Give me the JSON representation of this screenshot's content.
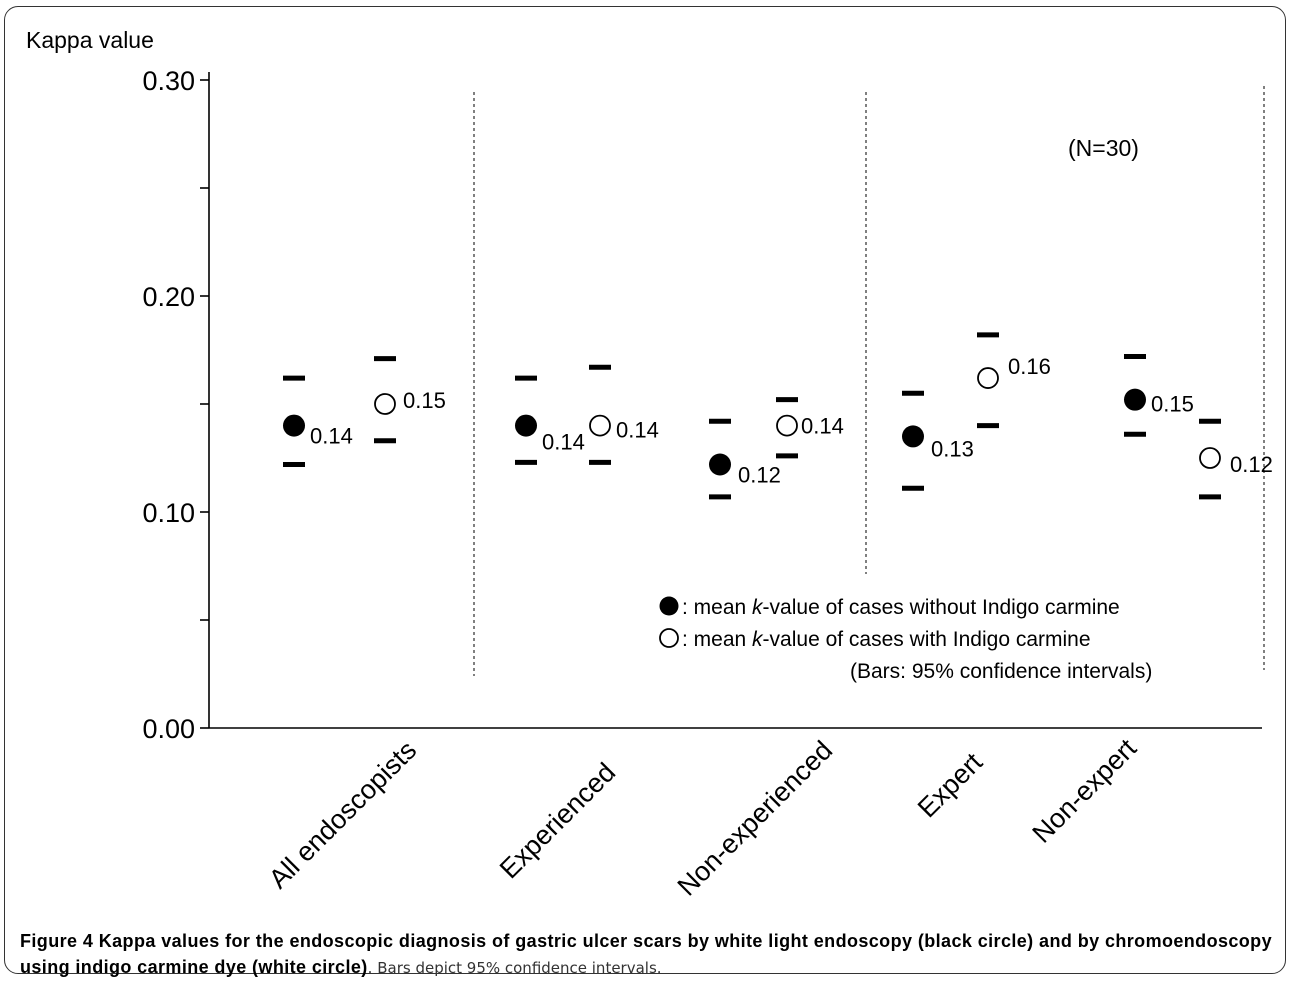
{
  "chart_data": {
    "type": "scatter",
    "ylabel": "Kappa value",
    "ylim": [
      0.0,
      0.3
    ],
    "yticks": [
      "0.00",
      "0.10",
      "0.20",
      "0.30"
    ],
    "categories": [
      "All endoscopists",
      "Experienced",
      "Non-experienced",
      "Expert",
      "Non-expert"
    ],
    "series": [
      {
        "legend_text": ": mean ",
        "legend_italic": "k",
        "legend_text_end": "-value of cases without Indigo carmine",
        "marker": "filled",
        "values": [
          0.14,
          0.14,
          0.122,
          0.135,
          0.152
        ],
        "labels": [
          "0.14",
          "0.14",
          "0.12",
          "0.13",
          "0.15"
        ],
        "ci_low": [
          0.122,
          0.123,
          0.107,
          0.111,
          0.136
        ],
        "ci_high": [
          0.162,
          0.162,
          0.142,
          0.155,
          0.172
        ]
      },
      {
        "legend_text": ": mean ",
        "legend_italic": "k",
        "legend_text_end": "-value of cases with Indigo carmine",
        "marker": "open",
        "values": [
          0.15,
          0.14,
          0.14,
          0.162,
          0.125
        ],
        "labels": [
          "0.15",
          "0.14",
          "0.14",
          "0.16",
          "0.12"
        ],
        "ci_low": [
          0.133,
          0.123,
          0.126,
          0.14,
          0.107
        ],
        "ci_high": [
          0.171,
          0.167,
          0.152,
          0.182,
          0.142
        ]
      }
    ],
    "annotation": "(N=30)",
    "legend_note": "(Bars: 95% confidence intervals)",
    "legend_position": "bottom-right",
    "grid": false
  },
  "caption": {
    "bold": "Figure 4 Kappa values for the endoscopic diagnosis of gastric ulcer scars by white light endoscopy (black circle) and by chromoendoscopy using indigo carmine dye (white circle)",
    "rest": ". Bars depict 95% confidence intervals."
  }
}
